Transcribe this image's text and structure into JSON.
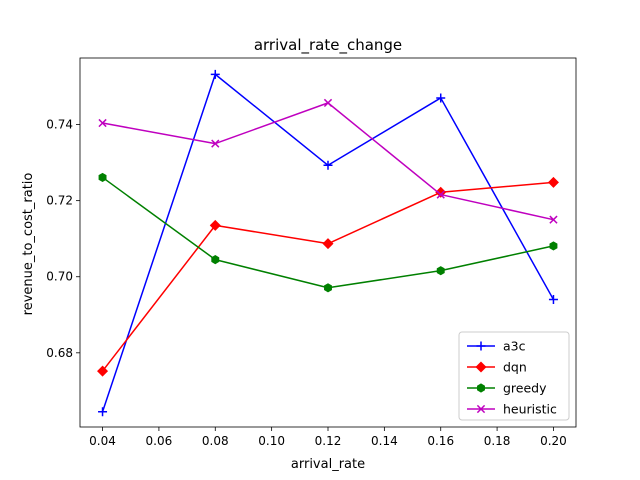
{
  "chart_data": {
    "type": "line",
    "title": "arrival_rate_change",
    "xlabel": "arrival_rate",
    "ylabel": "revenue_to_cost_ratio",
    "x": [
      0.04,
      0.08,
      0.12,
      0.16,
      0.2
    ],
    "xlim": [
      0.032,
      0.208
    ],
    "ylim": [
      0.6605,
      0.7575
    ],
    "xticks": [
      0.04,
      0.06,
      0.08,
      0.1,
      0.12,
      0.14,
      0.16,
      0.18,
      0.2
    ],
    "xtick_labels": [
      "0.04",
      "0.06",
      "0.08",
      "0.10",
      "0.12",
      "0.14",
      "0.16",
      "0.18",
      "0.20"
    ],
    "yticks": [
      0.68,
      0.7,
      0.72,
      0.74
    ],
    "ytick_labels": [
      "0.68",
      "0.70",
      "0.72",
      "0.74"
    ],
    "grid": false,
    "legend_position": "lower-right",
    "series": [
      {
        "name": "a3c",
        "color": "#0000ff",
        "marker": "plus",
        "values": [
          0.6645,
          0.7532,
          0.7293,
          0.747,
          0.694
        ]
      },
      {
        "name": "dqn",
        "color": "#ff0000",
        "marker": "diamond",
        "values": [
          0.6752,
          0.7135,
          0.7087,
          0.7222,
          0.7248
        ]
      },
      {
        "name": "greedy",
        "color": "#008000",
        "marker": "hexagon",
        "values": [
          0.7261,
          0.7045,
          0.6971,
          0.7016,
          0.7081
        ]
      },
      {
        "name": "heuristic",
        "color": "#bf00bf",
        "marker": "x",
        "values": [
          0.7404,
          0.735,
          0.7457,
          0.7216,
          0.715
        ]
      }
    ]
  }
}
